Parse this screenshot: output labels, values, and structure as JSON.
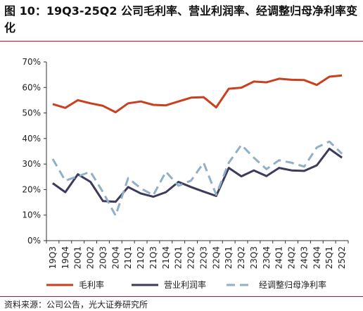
{
  "title": "图 10：19Q3-25Q2 公司毛利率、营业利润率、经调整归母净利率变化",
  "source": "资料来源：公司公告，光大证券研究所",
  "chart_data": {
    "type": "line",
    "x": [
      "19Q3",
      "19Q4",
      "20Q1",
      "20Q2",
      "20Q3",
      "20Q4",
      "21Q1",
      "21Q2",
      "21Q3",
      "21Q4",
      "22Q1",
      "22Q2",
      "22Q3",
      "22Q4",
      "23Q1",
      "23Q2",
      "23Q3",
      "23Q4",
      "24Q1",
      "24Q2",
      "24Q3",
      "24Q4",
      "25Q1",
      "25Q2"
    ],
    "ylim": [
      0,
      70
    ],
    "yticks": [
      0,
      10,
      20,
      30,
      40,
      50,
      60,
      70
    ],
    "ytick_labels": [
      "0%",
      "10%",
      "20%",
      "30%",
      "40%",
      "50%",
      "60%",
      "70%"
    ],
    "ytick_suffix": "%",
    "grid": false,
    "legend_position": "bottom",
    "series": [
      {
        "name": "毛利率",
        "color": "#c9401f",
        "dash": "solid",
        "values": [
          53.5,
          52.0,
          55.0,
          53.8,
          52.8,
          50.3,
          53.8,
          54.5,
          53.2,
          53.0,
          54.5,
          56.0,
          56.2,
          52.2,
          59.5,
          59.9,
          62.3,
          62.0,
          63.4,
          63.0,
          62.9,
          61.0,
          64.2,
          64.7
        ]
      },
      {
        "name": "营业利润率",
        "color": "#3d3a5c",
        "dash": "solid",
        "values": [
          22.5,
          19.0,
          26.0,
          23.0,
          15.5,
          15.2,
          21.0,
          18.5,
          17.2,
          19.0,
          23.0,
          21.0,
          19.2,
          17.5,
          28.5,
          25.2,
          27.5,
          25.3,
          28.5,
          27.5,
          27.3,
          29.5,
          36.0,
          32.5
        ]
      },
      {
        "name": "经调整归母净利率",
        "color": "#8fb0c6",
        "dash": "dashed",
        "values": [
          32.0,
          23.5,
          25.2,
          27.0,
          19.0,
          9.8,
          24.5,
          20.5,
          17.8,
          27.0,
          21.5,
          23.5,
          30.5,
          18.0,
          30.5,
          37.5,
          32.5,
          28.0,
          31.5,
          30.5,
          29.0,
          36.5,
          38.8,
          34.0
        ]
      }
    ]
  }
}
